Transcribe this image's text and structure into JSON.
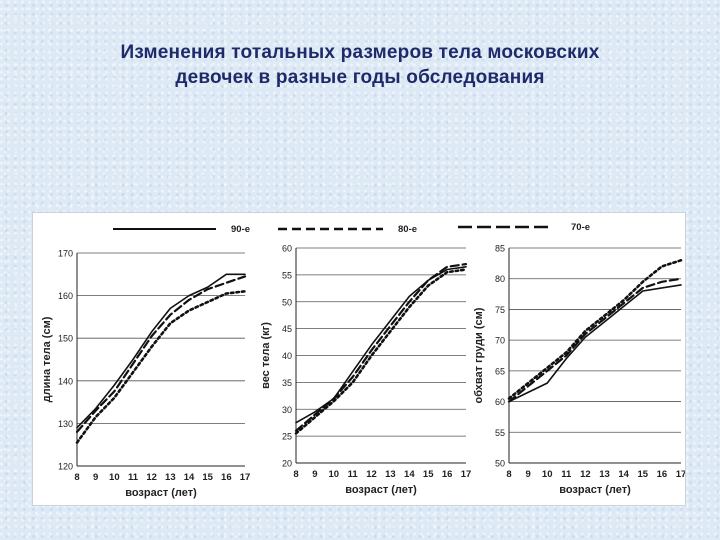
{
  "title": {
    "line1": "Изменения тотальных размеров тела московских",
    "line2": "девочек в разные годы обследования"
  },
  "colors": {
    "title": "#1f2a6b",
    "lines": "#111111",
    "background": "#dde9f5"
  },
  "chart_data": [
    {
      "type": "line",
      "title": "",
      "xlabel": "возраст (лет)",
      "ylabel": "длина тела (см)",
      "x": [
        8,
        9,
        10,
        11,
        12,
        13,
        14,
        15,
        16,
        17
      ],
      "ylim": [
        120,
        170
      ],
      "yticks": [
        120,
        130,
        140,
        150,
        160,
        170
      ],
      "grid": true,
      "legend": [
        {
          "label": "90-е",
          "series": 0
        }
      ],
      "series": [
        {
          "name": "90-е",
          "style": "solid",
          "values": [
            129,
            133.5,
            139,
            145,
            151.5,
            157,
            160,
            162,
            165,
            165
          ]
        },
        {
          "name": "80-е",
          "style": "dash",
          "values": [
            128,
            133,
            137.5,
            144,
            150.5,
            155.5,
            159,
            161.5,
            163,
            164.5
          ]
        },
        {
          "name": "70-е",
          "style": "dot",
          "values": [
            125.5,
            131.5,
            136,
            142,
            148,
            153.5,
            156.5,
            158.5,
            160.5,
            161
          ]
        }
      ]
    },
    {
      "type": "line",
      "title": "",
      "xlabel": "возраст (лет)",
      "ylabel": "вес тела (кг)",
      "x": [
        8,
        9,
        10,
        11,
        12,
        13,
        14,
        15,
        16,
        17
      ],
      "ylim": [
        20,
        60
      ],
      "yticks": [
        20,
        25,
        30,
        35,
        40,
        45,
        50,
        55,
        60
      ],
      "grid": true,
      "legend": [
        {
          "label": "80-е",
          "series": 1
        }
      ],
      "series": [
        {
          "name": "90-е",
          "style": "solid",
          "values": [
            27.5,
            29.5,
            32,
            37,
            42,
            46.5,
            51,
            54,
            56,
            56.5
          ]
        },
        {
          "name": "80-е",
          "style": "dash",
          "values": [
            26,
            29,
            32,
            36,
            41,
            45.5,
            50,
            54,
            56.5,
            57
          ]
        },
        {
          "name": "70-е",
          "style": "dot",
          "values": [
            25.5,
            28.5,
            31.5,
            35,
            40,
            44.5,
            49,
            53,
            55.5,
            56
          ]
        }
      ]
    },
    {
      "type": "line",
      "title": "",
      "xlabel": "возраст (лет)",
      "ylabel": "обхват груди (см)",
      "x": [
        8,
        9,
        10,
        11,
        12,
        13,
        14,
        15,
        16,
        17
      ],
      "ylim": [
        50,
        85
      ],
      "yticks": [
        50,
        55,
        60,
        65,
        70,
        75,
        80,
        85
      ],
      "grid": true,
      "legend": [
        {
          "label": "70-е",
          "series": 2
        }
      ],
      "series": [
        {
          "name": "90-е",
          "style": "solid",
          "values": [
            60,
            61.5,
            63,
            67,
            70.5,
            73,
            75.5,
            78,
            78.5,
            79
          ]
        },
        {
          "name": "80-е",
          "style": "dash",
          "values": [
            60,
            62.5,
            65,
            67.5,
            71,
            73.5,
            76,
            78.5,
            79.5,
            80
          ]
        },
        {
          "name": "70-е",
          "style": "dot",
          "values": [
            60.5,
            63,
            65.5,
            68,
            71.5,
            74,
            76.5,
            79.5,
            82,
            83
          ]
        }
      ]
    }
  ]
}
